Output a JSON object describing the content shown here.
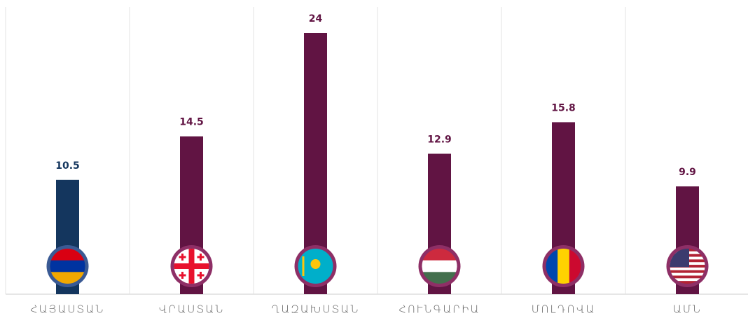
{
  "chart_data": {
    "type": "bar",
    "categories": [
      "ՀԱՅԱՍՏԱՆ",
      "ՎՐԱՍՏԱՆ",
      "ՂԱԶԱԽՍՏԱՆ",
      "ՀՈՒՆԳԱՐԻԱ",
      "ՄՈԼԴՈՎԱ",
      "ԱՄՆ"
    ],
    "values": [
      10.5,
      14.5,
      24,
      12.9,
      15.8,
      9.9
    ],
    "colors": [
      "#14365e",
      "#611443",
      "#611443",
      "#611443",
      "#611443",
      "#611443"
    ]
  }
}
